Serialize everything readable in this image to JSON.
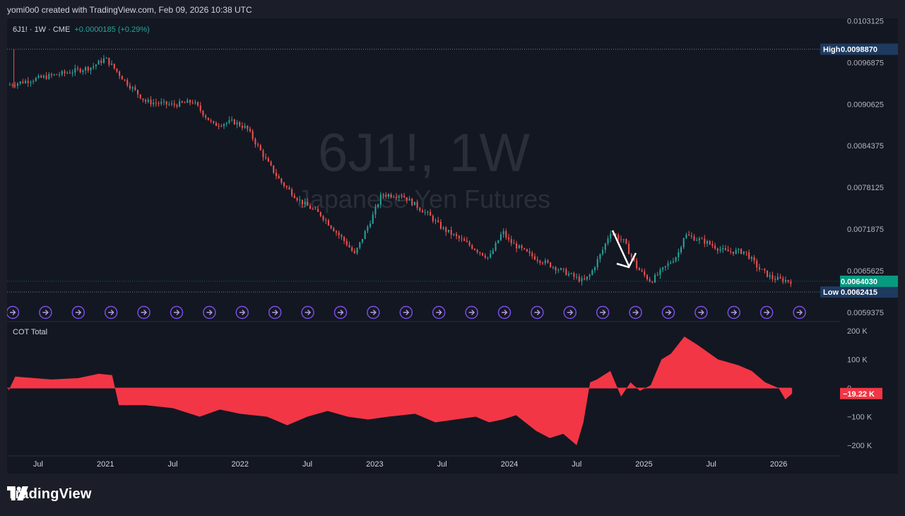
{
  "header": {
    "caption": "yomi0o0 created with TradingView.com, Feb 09, 2026 10:38 UTC"
  },
  "symbol": {
    "legend_name": "6J1! · 1W · CME",
    "legend_change": "+0.0000185 (+0.29%)"
  },
  "watermark": {
    "line1": "6J1!, 1W",
    "line2": "Japanese Yen Futures"
  },
  "indicator": {
    "name": "COT Total"
  },
  "price_labels": {
    "high_tag": "High",
    "high_value": "0.0098870",
    "low_tag": "Low",
    "low_value": "0.0062415",
    "last_value": "0.0064030",
    "cot_last": "−19.22 K"
  },
  "brand": {
    "name": "TradingView"
  },
  "colors": {
    "up": "#26a69a",
    "down": "#ef5350",
    "area": "#f23645",
    "bg": "#131722",
    "last_tag": "#089981",
    "marker": "#7b4ce6"
  },
  "icons": [
    "tradingview-logo-icon",
    "dividend-marker-icon",
    "arrow-annotation-icon"
  ],
  "chart_data": [
    {
      "type": "candlestick",
      "title": "6J1!, 1W",
      "subtitle": "Japanese Yen Futures",
      "y_ticks": [
        "0.0103125",
        "0.0096875",
        "0.0090625",
        "0.0084375",
        "0.0078125",
        "0.0071875",
        "0.0065625",
        "0.0059375"
      ],
      "y_range": [
        0.00585,
        0.01035
      ],
      "x_ticks": [
        "Jul",
        "2021",
        "Jul",
        "2022",
        "Jul",
        "2023",
        "Jul",
        "2024",
        "Jul",
        "2025",
        "Jul",
        "2026"
      ],
      "high": 0.009887,
      "low": 0.0062415,
      "last": 0.006403,
      "path_points": [
        [
          2020.28,
          0.00935
        ],
        [
          2020.5,
          0.00945
        ],
        [
          2020.7,
          0.00953
        ],
        [
          2020.9,
          0.00962
        ],
        [
          2021.0,
          0.00975
        ],
        [
          2021.15,
          0.0094
        ],
        [
          2021.3,
          0.0091
        ],
        [
          2021.5,
          0.00905
        ],
        [
          2021.65,
          0.0091
        ],
        [
          2021.8,
          0.00875
        ],
        [
          2021.95,
          0.0088
        ],
        [
          2022.05,
          0.0087
        ],
        [
          2022.2,
          0.0082
        ],
        [
          2022.3,
          0.0079
        ],
        [
          2022.45,
          0.0076
        ],
        [
          2022.6,
          0.0074
        ],
        [
          2022.8,
          0.00695
        ],
        [
          2022.85,
          0.0068
        ],
        [
          2023.0,
          0.00745
        ],
        [
          2023.05,
          0.0077
        ],
        [
          2023.2,
          0.0077
        ],
        [
          2023.4,
          0.0074
        ],
        [
          2023.5,
          0.0072
        ],
        [
          2023.7,
          0.00695
        ],
        [
          2023.85,
          0.00675
        ],
        [
          2023.95,
          0.00715
        ],
        [
          2024.0,
          0.007
        ],
        [
          2024.15,
          0.0068
        ],
        [
          2024.3,
          0.00665
        ],
        [
          2024.45,
          0.0065
        ],
        [
          2024.55,
          0.0064
        ],
        [
          2024.6,
          0.0065
        ],
        [
          2024.7,
          0.0069
        ],
        [
          2024.75,
          0.00715
        ],
        [
          2024.85,
          0.007
        ],
        [
          2024.95,
          0.0066
        ],
        [
          2025.05,
          0.0064
        ],
        [
          2025.15,
          0.0066
        ],
        [
          2025.25,
          0.0068
        ],
        [
          2025.3,
          0.0071
        ],
        [
          2025.45,
          0.007
        ],
        [
          2025.6,
          0.00685
        ],
        [
          2025.75,
          0.00685
        ],
        [
          2025.85,
          0.0066
        ],
        [
          2025.95,
          0.00645
        ],
        [
          2026.1,
          0.0064
        ]
      ]
    },
    {
      "type": "area",
      "title": "COT Total",
      "y_ticks": [
        "200 K",
        "100 K",
        "0",
        "−100 K",
        "−200 K"
      ],
      "y_range": [
        -215000,
        210000
      ],
      "last": -19220,
      "points": [
        [
          2020.28,
          -10000
        ],
        [
          2020.33,
          40000
        ],
        [
          2020.6,
          30000
        ],
        [
          2020.8,
          35000
        ],
        [
          2020.95,
          50000
        ],
        [
          2021.05,
          45000
        ],
        [
          2021.1,
          -60000
        ],
        [
          2021.3,
          -60000
        ],
        [
          2021.5,
          -70000
        ],
        [
          2021.7,
          -100000
        ],
        [
          2021.85,
          -75000
        ],
        [
          2022.0,
          -90000
        ],
        [
          2022.2,
          -100000
        ],
        [
          2022.35,
          -130000
        ],
        [
          2022.5,
          -100000
        ],
        [
          2022.65,
          -80000
        ],
        [
          2022.8,
          -100000
        ],
        [
          2022.95,
          -110000
        ],
        [
          2023.1,
          -100000
        ],
        [
          2023.3,
          -90000
        ],
        [
          2023.45,
          -120000
        ],
        [
          2023.6,
          -110000
        ],
        [
          2023.75,
          -100000
        ],
        [
          2023.85,
          -120000
        ],
        [
          2023.95,
          -110000
        ],
        [
          2024.05,
          -95000
        ],
        [
          2024.2,
          -150000
        ],
        [
          2024.3,
          -175000
        ],
        [
          2024.4,
          -160000
        ],
        [
          2024.5,
          -200000
        ],
        [
          2024.55,
          -120000
        ],
        [
          2024.6,
          20000
        ],
        [
          2024.65,
          30000
        ],
        [
          2024.75,
          60000
        ],
        [
          2024.83,
          -30000
        ],
        [
          2024.9,
          20000
        ],
        [
          2024.97,
          -10000
        ],
        [
          2025.05,
          10000
        ],
        [
          2025.13,
          100000
        ],
        [
          2025.2,
          120000
        ],
        [
          2025.3,
          180000
        ],
        [
          2025.4,
          150000
        ],
        [
          2025.55,
          100000
        ],
        [
          2025.7,
          80000
        ],
        [
          2025.8,
          60000
        ],
        [
          2025.9,
          20000
        ],
        [
          2026.0,
          0
        ],
        [
          2026.05,
          -40000
        ],
        [
          2026.1,
          -19220
        ]
      ]
    }
  ]
}
